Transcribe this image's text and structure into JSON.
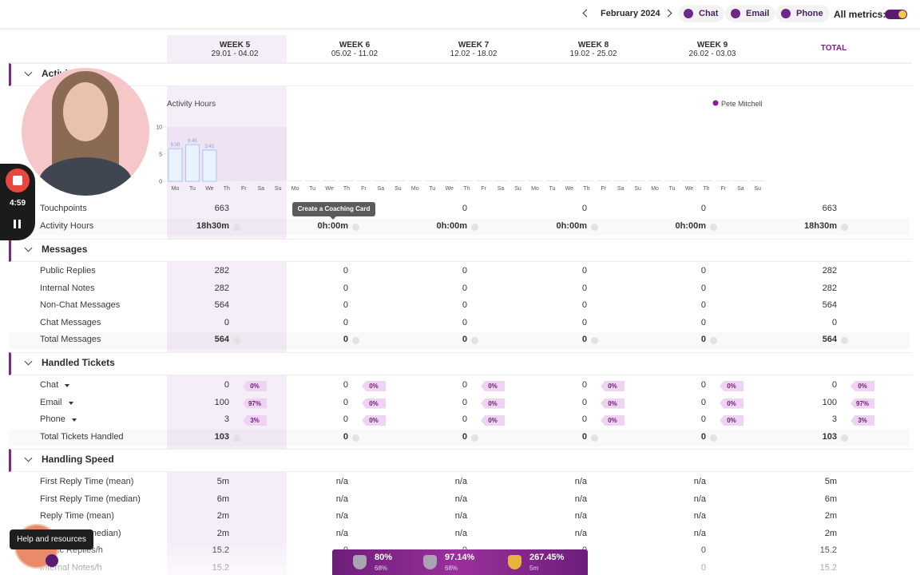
{
  "topbar": {
    "month": "February 2024",
    "channels": [
      "Chat",
      "Email",
      "Phone"
    ],
    "all_metrics": "All metrics:"
  },
  "columns": {
    "weeks": [
      {
        "name": "WEEK 5",
        "dates": "29.01 - 04.02"
      },
      {
        "name": "WEEK 6",
        "dates": "05.02 - 11.02"
      },
      {
        "name": "WEEK 7",
        "dates": "12.02 - 18.02"
      },
      {
        "name": "WEEK 8",
        "dates": "19.02 - 25.02"
      },
      {
        "name": "WEEK 9",
        "dates": "26.02 - 03.03"
      }
    ],
    "total": "TOTAL"
  },
  "sections": [
    {
      "title": "Activity",
      "chart": {
        "type": "bar",
        "title": "Activity Hours",
        "legend": "Pete Mitchell",
        "legend_color": "#8b1f8f",
        "ylim": [
          0,
          10
        ],
        "yticks": [
          0,
          5,
          10
        ],
        "categories": [
          "Mo",
          "Tu",
          "We",
          "Th",
          "Fr",
          "Sa",
          "Su",
          "Mo",
          "Tu",
          "We",
          "Th",
          "Fr",
          "Sa",
          "Su",
          "Mo",
          "Tu",
          "We",
          "Th",
          "Fr",
          "Sa",
          "Su",
          "Mo",
          "Tu",
          "We",
          "Th",
          "Fr",
          "Sa",
          "Su",
          "Mo",
          "Tu",
          "We",
          "Th",
          "Fr",
          "Sa",
          "Su"
        ],
        "values": [
          6,
          6.75,
          5.75,
          0,
          0,
          0,
          0,
          0,
          0,
          0,
          0,
          0,
          0,
          0,
          0,
          0,
          0,
          0,
          0,
          0,
          0,
          0,
          0,
          0,
          0,
          0,
          0,
          0,
          0,
          0,
          0,
          0,
          0,
          0,
          0
        ],
        "value_labels": [
          "6:00",
          "6:45",
          "5:45",
          null,
          null,
          null,
          null,
          null,
          null,
          null,
          null,
          null,
          null,
          null,
          null,
          null,
          null,
          null,
          null,
          null,
          null,
          null,
          null,
          null,
          null,
          null,
          null,
          null,
          null,
          null,
          null,
          null,
          null,
          null,
          null
        ]
      },
      "rows": [
        {
          "label": "Touchpoints",
          "cells": [
            "663",
            "0",
            "0",
            "0",
            "0",
            "663"
          ]
        },
        {
          "label": "Activity Hours",
          "cells": [
            "18h30m",
            "0h:00m",
            "0h:00m",
            "0h:00m",
            "0h:00m",
            "18h30m"
          ],
          "bold": true
        }
      ]
    },
    {
      "title": "Messages",
      "rows": [
        {
          "label": "Public Replies",
          "cells": [
            "282",
            "0",
            "0",
            "0",
            "0",
            "282"
          ]
        },
        {
          "label": "Internal Notes",
          "cells": [
            "282",
            "0",
            "0",
            "0",
            "0",
            "282"
          ]
        },
        {
          "label": "Non-Chat Messages",
          "cells": [
            "564",
            "0",
            "0",
            "0",
            "0",
            "564"
          ]
        },
        {
          "label": "Chat Messages",
          "cells": [
            "0",
            "0",
            "0",
            "0",
            "0",
            "0"
          ]
        },
        {
          "label": "Total Messages",
          "cells": [
            "564",
            "0",
            "0",
            "0",
            "0",
            "564"
          ],
          "bold": true
        }
      ]
    },
    {
      "title": "Handled Tickets",
      "rows": [
        {
          "label": "Chat",
          "dropdown": true,
          "cells": [
            "0",
            "0",
            "0",
            "0",
            "0",
            "0"
          ],
          "shares": [
            "0%",
            "0%",
            "0%",
            "0%",
            "0%",
            "0%"
          ]
        },
        {
          "label": "Email",
          "dropdown": true,
          "cells": [
            "100",
            "0",
            "0",
            "0",
            "0",
            "100"
          ],
          "shares": [
            "97%",
            "0%",
            "0%",
            "0%",
            "0%",
            "97%"
          ]
        },
        {
          "label": "Phone",
          "dropdown": true,
          "cells": [
            "3",
            "0",
            "0",
            "0",
            "0",
            "3"
          ],
          "shares": [
            "3%",
            "0%",
            "0%",
            "0%",
            "0%",
            "3%"
          ]
        },
        {
          "label": "Total Tickets Handled",
          "cells": [
            "103",
            "0",
            "0",
            "0",
            "0",
            "103"
          ],
          "bold": true
        }
      ]
    },
    {
      "title": "Handling Speed",
      "rows": [
        {
          "label": "First Reply Time (mean)",
          "cells": [
            "5m",
            "n/a",
            "n/a",
            "n/a",
            "n/a",
            "5m"
          ]
        },
        {
          "label": "First Reply Time (median)",
          "cells": [
            "6m",
            "n/a",
            "n/a",
            "n/a",
            "n/a",
            "6m"
          ]
        },
        {
          "label": "Reply Time (mean)",
          "cells": [
            "2m",
            "n/a",
            "n/a",
            "n/a",
            "n/a",
            "2m"
          ]
        },
        {
          "label": "Reply Time (median)",
          "cells": [
            "2m",
            "n/a",
            "n/a",
            "n/a",
            "n/a",
            "2m"
          ]
        },
        {
          "label": "Public Replies/h",
          "cells": [
            "15.2",
            "0",
            "0",
            "0",
            "0",
            "15.2"
          ]
        },
        {
          "label": "Internal Notes/h",
          "cells": [
            "15.2",
            "0",
            "0",
            "0",
            "0",
            "15.2"
          ]
        }
      ]
    }
  ],
  "tooltip": "Create a Coaching Card",
  "recorder": {
    "time": "4:59"
  },
  "help": "Help and resources",
  "scorebar": [
    {
      "value": "80%",
      "sub": "68%"
    },
    {
      "value": "97.14%",
      "sub": "68%"
    },
    {
      "value": "267.45%",
      "sub": "5m"
    }
  ]
}
